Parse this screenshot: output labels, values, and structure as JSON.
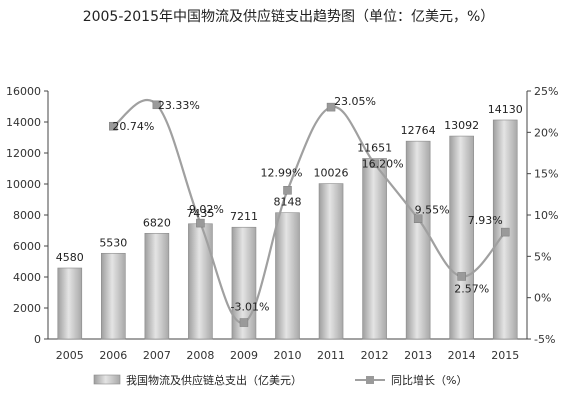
{
  "chart_data": {
    "type": "bar",
    "title": "2005-2015年中国物流及供应链支出趋势图（单位：亿美元，%）",
    "categories": [
      "2005",
      "2006",
      "2007",
      "2008",
      "2009",
      "2010",
      "2011",
      "2012",
      "2013",
      "2014",
      "2015"
    ],
    "series": [
      {
        "name": "我国物流及供应链总支出（亿美元）",
        "type": "bar",
        "axis": "left",
        "values": [
          4580,
          5530,
          6820,
          7435,
          7211,
          8148,
          10026,
          11651,
          12764,
          13092,
          14130
        ],
        "labels": [
          "4580",
          "5530",
          "6820",
          "7435",
          "7211",
          "8148",
          "10026",
          "11651",
          "12764",
          "13092",
          "14130"
        ]
      },
      {
        "name": "同比增长（%）",
        "type": "line",
        "axis": "right",
        "values": [
          null,
          20.74,
          23.33,
          9.02,
          -3.01,
          12.99,
          23.05,
          16.2,
          9.55,
          2.57,
          7.93
        ],
        "labels": [
          "",
          "20.74%",
          "23.33%",
          "9.02%",
          "-3.01%",
          "12.99%",
          "23.05%",
          "16.20%",
          "9.55%",
          "2.57%",
          "7.93%"
        ]
      }
    ],
    "ylim_left": [
      0,
      16000
    ],
    "yticks_left": [
      0,
      2000,
      4000,
      6000,
      8000,
      10000,
      12000,
      14000,
      16000
    ],
    "ylim_right": [
      -5,
      25
    ],
    "yticks_right": [
      "-5%",
      "0%",
      "5%",
      "10%",
      "15%",
      "20%",
      "25%"
    ],
    "grid": false,
    "legend_position": "bottom",
    "colors": {
      "bar": "#b8b8b8",
      "bar_edge": "#8a8a8a",
      "line": "#a0a0a0",
      "marker": "#9a9a9a"
    }
  }
}
